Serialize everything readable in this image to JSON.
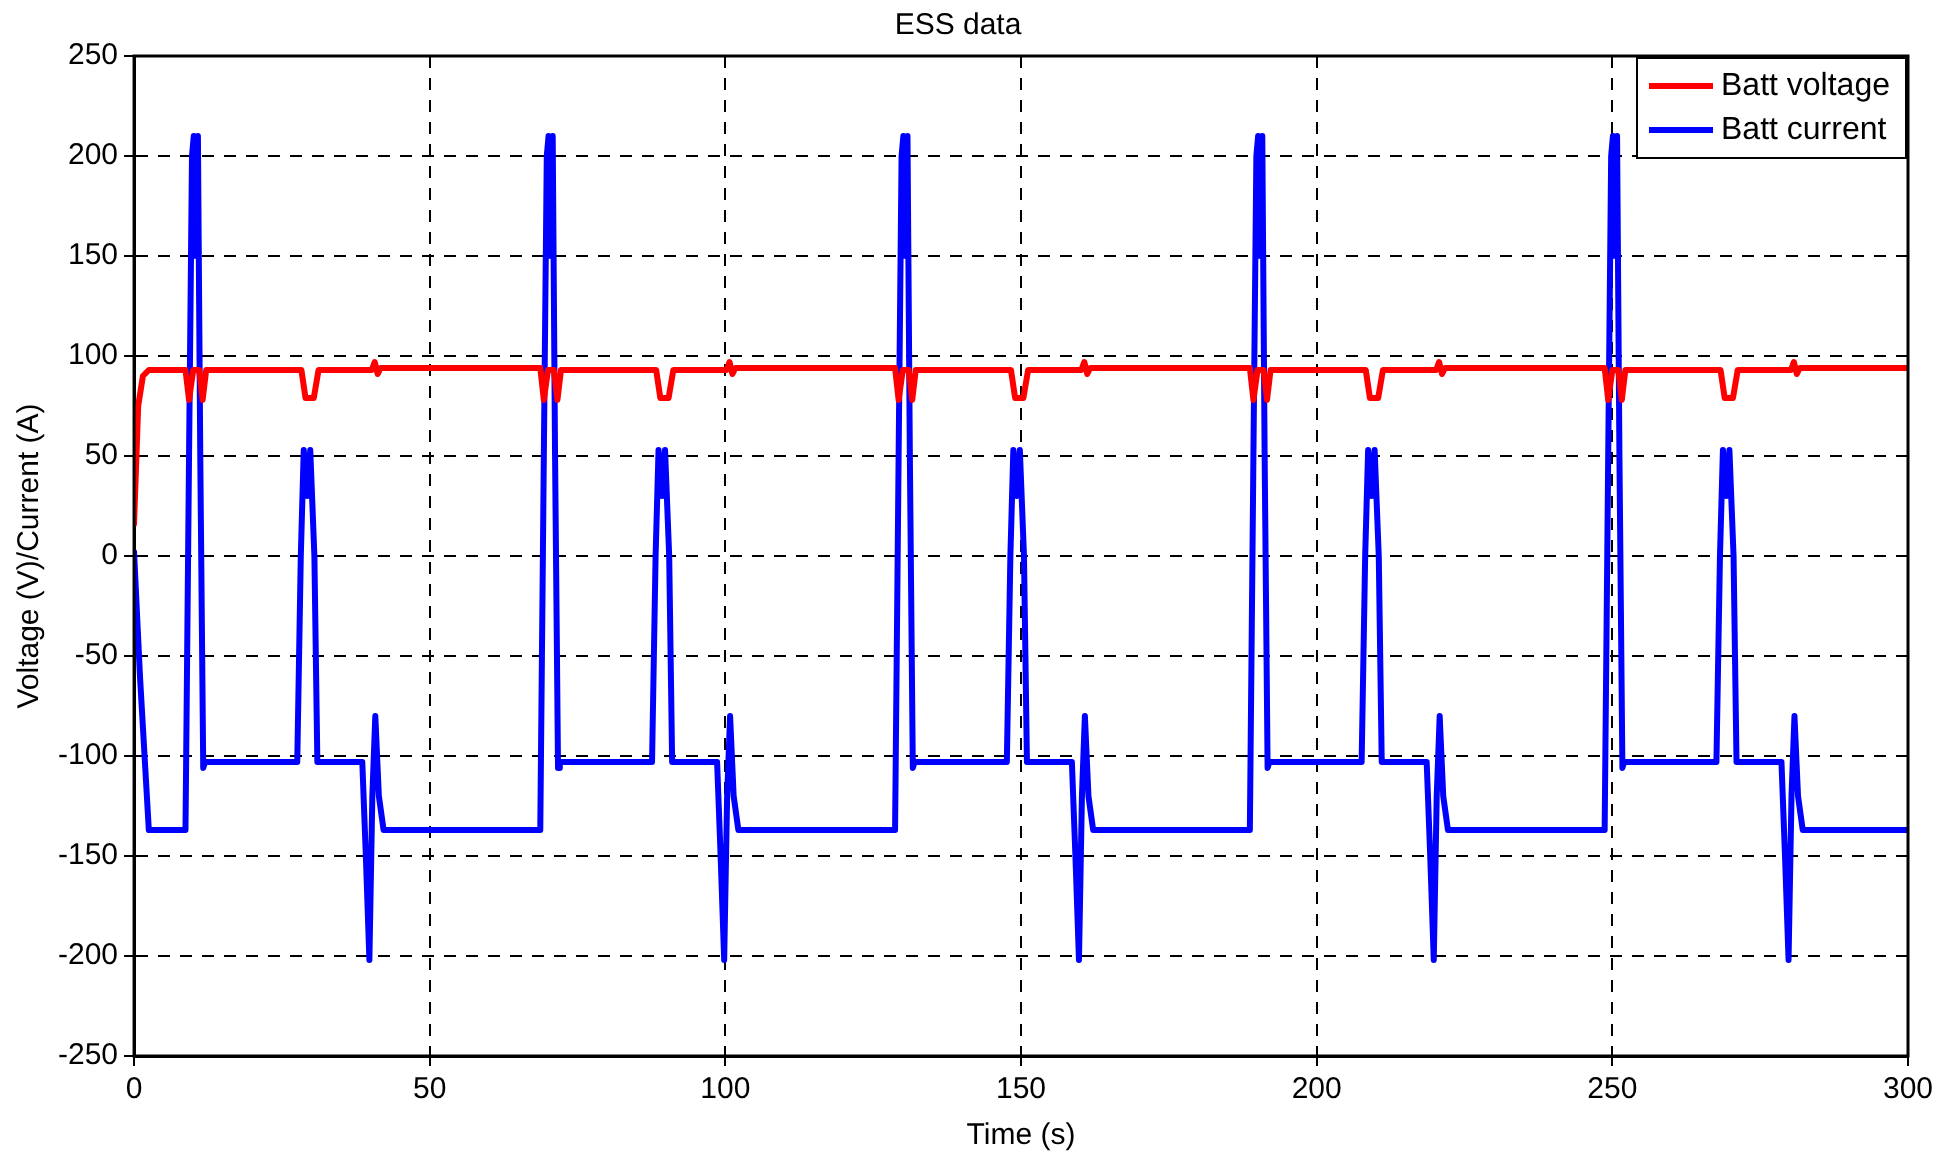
{
  "chart_data": {
    "type": "line",
    "title": "ESS data",
    "xlabel": "Time (s)",
    "ylabel": "Voltage (V)/Current (A)",
    "xlim": [
      0,
      300
    ],
    "xticks": [
      0,
      50,
      100,
      150,
      200,
      250,
      300
    ],
    "ylim": [
      -250,
      250
    ],
    "yticks": [
      -250,
      -200,
      -150,
      -100,
      -50,
      0,
      50,
      100,
      150,
      200,
      250
    ],
    "grid": true,
    "legend": "top right",
    "marker": "none",
    "line_style": "solid",
    "series": [
      {
        "name": "Batt voltage",
        "color": "#ff0000",
        "x": [
          0,
          0.7,
          1.5,
          2.5,
          8.7,
          9.3,
          10,
          11,
          11.6,
          12.2,
          28.3,
          29,
          30.4,
          31.2,
          40.2,
          40.7,
          41.2,
          41.7,
          68.7,
          69.3,
          70,
          71,
          71.6,
          72.2,
          88.3,
          89,
          90.4,
          91.2,
          100.2,
          100.7,
          101.2,
          101.7,
          128.7,
          129.3,
          130,
          131,
          131.6,
          132.2,
          148.3,
          149,
          150.4,
          151.2,
          160.2,
          160.7,
          161.2,
          161.7,
          188.7,
          189.3,
          190,
          191,
          191.6,
          192.2,
          208.3,
          209,
          210.4,
          211.2,
          220.2,
          220.7,
          221.2,
          221.7,
          248.7,
          249.3,
          250,
          251,
          251.6,
          252.2,
          268.3,
          269,
          270.4,
          271.2,
          280.2,
          280.7,
          281.2,
          281.7,
          300
        ],
        "values": [
          16,
          75,
          90,
          93,
          93,
          78,
          93,
          93,
          78,
          93,
          93,
          79,
          79,
          93,
          93,
          97,
          91,
          94,
          94,
          78,
          93,
          93,
          78,
          93,
          93,
          79,
          79,
          93,
          93,
          97,
          91,
          94,
          94,
          78,
          93,
          93,
          78,
          93,
          93,
          79,
          79,
          93,
          93,
          97,
          91,
          94,
          94,
          78,
          93,
          93,
          78,
          93,
          93,
          79,
          79,
          93,
          93,
          97,
          91,
          94,
          94,
          78,
          93,
          93,
          78,
          93,
          93,
          79,
          79,
          93,
          93,
          97,
          91,
          94,
          94
        ]
      },
      {
        "name": "Batt current",
        "color": "#0000ff",
        "x": [
          0,
          1,
          2.5,
          8.7,
          9.3,
          9.8,
          10.1,
          10.5,
          10.8,
          11.2,
          11.7,
          12,
          27.6,
          28.2,
          28.7,
          29.3,
          29.8,
          30.5,
          31,
          38.6,
          39.2,
          39.8,
          40.3,
          40.8,
          41.4,
          42.2,
          68.7,
          69.3,
          69.8,
          70.1,
          70.5,
          70.8,
          71.2,
          71.7,
          72,
          87.6,
          88.2,
          88.7,
          89.3,
          89.8,
          90.5,
          91,
          98.6,
          99.2,
          99.8,
          100.3,
          100.8,
          101.4,
          102.2,
          128.7,
          129.3,
          129.8,
          130.1,
          130.5,
          130.8,
          131.2,
          131.7,
          132,
          147.6,
          148.2,
          148.7,
          149.3,
          149.8,
          150.5,
          151,
          158.6,
          159.2,
          159.8,
          160.3,
          160.8,
          161.4,
          162.2,
          188.7,
          189.3,
          189.8,
          190.1,
          190.5,
          190.8,
          191.2,
          191.7,
          192,
          207.6,
          208.2,
          208.7,
          209.3,
          209.8,
          210.5,
          211,
          218.6,
          219.2,
          219.8,
          220.3,
          220.8,
          221.4,
          222.2,
          248.7,
          249.3,
          249.8,
          250.1,
          250.5,
          250.8,
          251.2,
          251.7,
          252,
          267.6,
          268.2,
          268.7,
          269.3,
          269.8,
          270.5,
          271,
          278.6,
          279.2,
          279.8,
          280.3,
          280.8,
          281.4,
          282.2,
          300
        ],
        "values": [
          2,
          -60,
          -137,
          -137,
          50,
          200,
          210,
          150,
          210,
          50,
          -106,
          -103,
          -103,
          0,
          53,
          30,
          53,
          0,
          -103,
          -103,
          -150,
          -202,
          -120,
          -80,
          -120,
          -137,
          -137,
          50,
          200,
          210,
          150,
          210,
          50,
          -106,
          -103,
          -103,
          0,
          53,
          30,
          53,
          0,
          -103,
          -103,
          -150,
          -202,
          -120,
          -80,
          -120,
          -137,
          -137,
          50,
          200,
          210,
          150,
          210,
          50,
          -106,
          -103,
          -103,
          0,
          53,
          30,
          53,
          0,
          -103,
          -103,
          -150,
          -202,
          -120,
          -80,
          -120,
          -137,
          -137,
          50,
          200,
          210,
          150,
          210,
          50,
          -106,
          -103,
          -103,
          0,
          53,
          30,
          53,
          0,
          -103,
          -103,
          -150,
          -202,
          -120,
          -80,
          -120,
          -137,
          -137,
          50,
          200,
          210,
          150,
          210,
          50,
          -106,
          -103,
          -103,
          0,
          53,
          30,
          53,
          0,
          -103,
          -103,
          -150,
          -202,
          -120,
          -80,
          -120,
          -137,
          -137
        ]
      }
    ]
  }
}
